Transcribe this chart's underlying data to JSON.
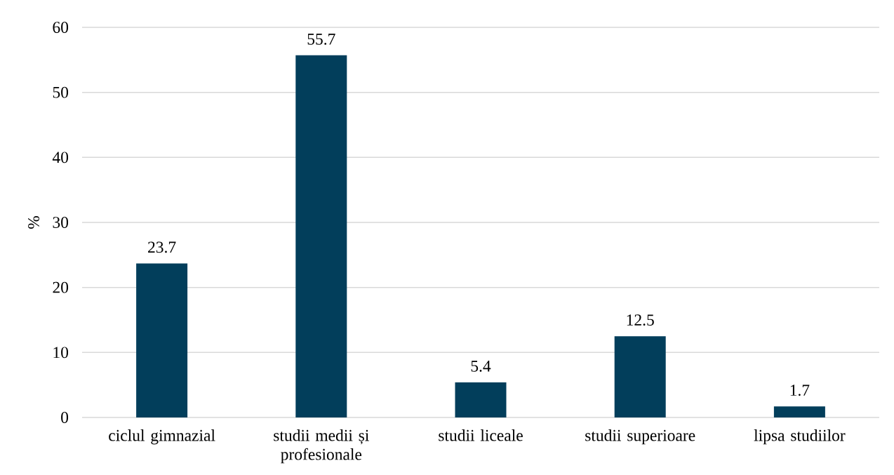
{
  "chart_data": {
    "type": "bar",
    "ylabel": "%",
    "categories": [
      "ciclul gimnazial",
      "studii medii și profesionale",
      "studii liceale",
      "studii superioare",
      "lipsa studiilor"
    ],
    "values": [
      23.7,
      55.7,
      5.4,
      12.5,
      1.7
    ],
    "color": "#023e5b",
    "ylim": [
      0,
      60
    ],
    "yticks": [
      0,
      10,
      20,
      30,
      40,
      50,
      60
    ],
    "grid": "y",
    "data_labels": true
  }
}
